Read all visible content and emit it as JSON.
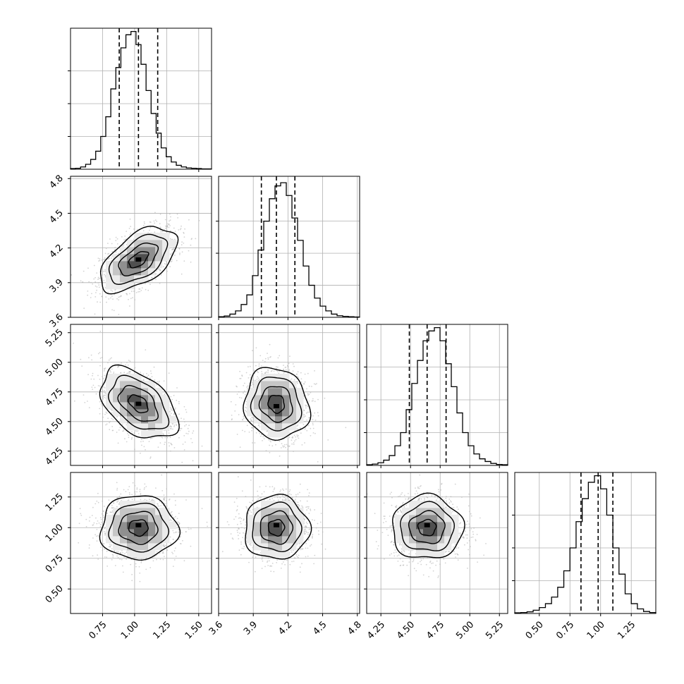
{
  "chart_data": {
    "type": "corner",
    "grid": true,
    "parameters": [
      {
        "range": [
          0.5,
          1.6
        ],
        "ticks": [
          {
            "v": 0.75,
            "label": "0.75"
          },
          {
            "v": 1.0,
            "label": "1.00"
          },
          {
            "v": 1.25,
            "label": "1.25"
          },
          {
            "v": 1.5,
            "label": "1.50"
          }
        ],
        "quantiles": [
          0.88,
          1.03,
          1.18
        ],
        "hist_max": 0.43,
        "hist_ticks": [
          0.1,
          0.2,
          0.3
        ],
        "hist": [
          0.002,
          0.003,
          0.007,
          0.015,
          0.03,
          0.055,
          0.1,
          0.16,
          0.245,
          0.31,
          0.37,
          0.41,
          0.42,
          0.38,
          0.32,
          0.24,
          0.17,
          0.11,
          0.065,
          0.038,
          0.022,
          0.012,
          0.007,
          0.004,
          0.003,
          0.002,
          0.001,
          0.001
        ]
      },
      {
        "range": [
          3.6,
          4.82
        ],
        "ticks": [
          {
            "v": 3.6,
            "label": "3.6"
          },
          {
            "v": 3.9,
            "label": "3.9"
          },
          {
            "v": 4.2,
            "label": "4.2"
          },
          {
            "v": 4.5,
            "label": "4.5"
          },
          {
            "v": 4.8,
            "label": "4.8"
          }
        ],
        "quantiles": [
          3.97,
          4.1,
          4.26
        ],
        "hist_max": 0.44,
        "hist_ticks": [
          0.1,
          0.2,
          0.3
        ],
        "hist": [
          0.002,
          0.004,
          0.01,
          0.02,
          0.04,
          0.07,
          0.13,
          0.21,
          0.3,
          0.37,
          0.41,
          0.42,
          0.38,
          0.31,
          0.24,
          0.16,
          0.1,
          0.06,
          0.035,
          0.02,
          0.01,
          0.005,
          0.003,
          0.002,
          0.001
        ]
      },
      {
        "range": [
          4.13,
          5.32
        ],
        "ticks": [
          {
            "v": 4.25,
            "label": "4.25"
          },
          {
            "v": 4.5,
            "label": "4.50"
          },
          {
            "v": 4.75,
            "label": "4.75"
          },
          {
            "v": 5.0,
            "label": "5.00"
          },
          {
            "v": 5.25,
            "label": "5.25"
          }
        ],
        "quantiles": [
          4.49,
          4.64,
          4.8
        ],
        "hist_max": 0.43,
        "hist_ticks": [
          0.1,
          0.2,
          0.3
        ],
        "hist": [
          0.002,
          0.004,
          0.008,
          0.016,
          0.03,
          0.06,
          0.1,
          0.17,
          0.25,
          0.32,
          0.38,
          0.41,
          0.42,
          0.38,
          0.31,
          0.24,
          0.16,
          0.1,
          0.06,
          0.035,
          0.02,
          0.012,
          0.006,
          0.003,
          0.002
        ]
      },
      {
        "range": [
          0.3,
          1.45
        ],
        "ticks": [
          {
            "v": 0.5,
            "label": "0.50"
          },
          {
            "v": 0.75,
            "label": "0.75"
          },
          {
            "v": 1.0,
            "label": "1.00"
          },
          {
            "v": 1.25,
            "label": "1.25"
          }
        ],
        "quantiles": [
          0.84,
          0.98,
          1.1
        ],
        "hist_max": 0.43,
        "hist_ticks": [
          0.1,
          0.2,
          0.3
        ],
        "hist": [
          0.002,
          0.003,
          0.005,
          0.01,
          0.018,
          0.03,
          0.05,
          0.08,
          0.13,
          0.2,
          0.28,
          0.35,
          0.4,
          0.42,
          0.38,
          0.3,
          0.2,
          0.12,
          0.06,
          0.03,
          0.014,
          0.006,
          0.003
        ]
      }
    ],
    "pairs": [
      {
        "row": 1,
        "col": 0,
        "rho": 0.55,
        "mean": [
          1.03,
          4.1
        ],
        "sd": [
          0.15,
          0.14
        ],
        "peak": [
          1.03,
          4.1
        ]
      },
      {
        "row": 2,
        "col": 0,
        "rho": -0.45,
        "mean": [
          1.03,
          4.65
        ],
        "sd": [
          0.15,
          0.15
        ],
        "peak": [
          1.03,
          4.65
        ]
      },
      {
        "row": 2,
        "col": 1,
        "rho": -0.1,
        "mean": [
          4.1,
          4.65
        ],
        "sd": [
          0.14,
          0.15
        ],
        "peak": [
          4.1,
          4.63
        ]
      },
      {
        "row": 3,
        "col": 0,
        "rho": 0.0,
        "mean": [
          1.03,
          1.0
        ],
        "sd": [
          0.15,
          0.13
        ],
        "peak": [
          1.03,
          1.02
        ]
      },
      {
        "row": 3,
        "col": 1,
        "rho": 0.0,
        "mean": [
          4.1,
          1.0
        ],
        "sd": [
          0.14,
          0.13
        ],
        "peak": [
          4.1,
          1.02
        ]
      },
      {
        "row": 3,
        "col": 2,
        "rho": 0.0,
        "mean": [
          4.64,
          1.0
        ],
        "sd": [
          0.15,
          0.13
        ],
        "peak": [
          4.64,
          1.02
        ]
      }
    ],
    "contour_levels_sigma": [
      0.5,
      1.0,
      1.5,
      2.0
    ]
  },
  "colors": {
    "line": "#000000",
    "grid": "#b0b0b0",
    "points": "#b5b5b5",
    "density_shades": [
      "#ebebeb",
      "#c6c6c6",
      "#8f8f8f",
      "#4f4f4f"
    ]
  }
}
